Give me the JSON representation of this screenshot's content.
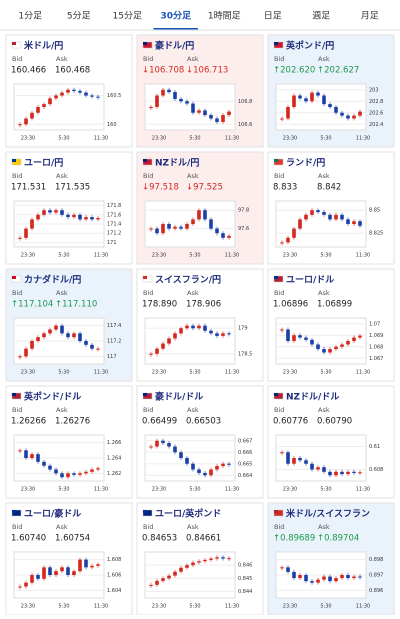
{
  "tabs": [
    "1分足",
    "5分足",
    "15分足",
    "30分足",
    "1時間足",
    "日足",
    "週足",
    "月足"
  ],
  "active_tab": 3,
  "bid_label": "Bid",
  "ask_label": "Ask",
  "cards": [
    {
      "title": "米ドル/円",
      "bid": "160.466",
      "ask": "160.468",
      "state": "none",
      "flag": [
        "#b22234",
        "#ffffff"
      ],
      "chart": {
        "ylim": [
          159.9,
          160.7
        ],
        "yticks": [
          160,
          160.5
        ],
        "xticks": [
          "23:30",
          "5:30",
          "11:30"
        ],
        "values": [
          160.0,
          160.1,
          160.2,
          160.3,
          160.35,
          160.45,
          160.5,
          160.55,
          160.6,
          160.58,
          160.55,
          160.5,
          160.48,
          160.47
        ]
      }
    },
    {
      "title": "豪ドル/円",
      "bid": "↓106.708",
      "ask": "↓106.713",
      "state": "down",
      "flag": [
        "#00247d",
        "#cf142b"
      ],
      "chart": {
        "ylim": [
          106.55,
          106.95
        ],
        "yticks": [
          106.6,
          106.8
        ],
        "xticks": [
          "23:30",
          "5:30",
          "11:30"
        ],
        "values": [
          106.75,
          106.85,
          106.9,
          106.88,
          106.82,
          106.8,
          106.78,
          106.7,
          106.72,
          106.68,
          106.65,
          106.62,
          106.68,
          106.71
        ]
      }
    },
    {
      "title": "英ポンド/円",
      "bid": "↑202.620",
      "ask": "↑202.627",
      "state": "up",
      "flag": [
        "#00247d",
        "#cf142b"
      ],
      "chart": {
        "ylim": [
          202.3,
          203.1
        ],
        "yticks": [
          202.4,
          202.6,
          202.8,
          203
        ],
        "xticks": [
          "23:30",
          "5:30",
          "11:30"
        ],
        "values": [
          202.5,
          202.7,
          202.9,
          202.85,
          202.8,
          202.95,
          202.9,
          202.75,
          202.7,
          202.6,
          202.55,
          202.5,
          202.55,
          202.62
        ]
      }
    },
    {
      "title": "ユーロ/円",
      "bid": "171.531",
      "ask": "171.535",
      "state": "none",
      "flag": [
        "#003399",
        "#ffcc00"
      ],
      "chart": {
        "ylim": [
          170.9,
          171.9
        ],
        "yticks": [
          171,
          171.2,
          171.4,
          171.6,
          171.8
        ],
        "xticks": [
          "23:30",
          "5:30",
          "11:30"
        ],
        "values": [
          171.1,
          171.3,
          171.5,
          171.6,
          171.7,
          171.65,
          171.7,
          171.6,
          171.55,
          171.6,
          171.5,
          171.55,
          171.5,
          171.53
        ]
      }
    },
    {
      "title": "NZドル/円",
      "bid": "↓97.518",
      "ask": "↓97.525",
      "state": "down",
      "flag": [
        "#00247d",
        "#cc142b"
      ],
      "chart": {
        "ylim": [
          97.4,
          97.9
        ],
        "yticks": [
          97.6,
          97.8
        ],
        "xticks": [
          "23:30",
          "5:30",
          "11:30"
        ],
        "values": [
          97.6,
          97.55,
          97.65,
          97.6,
          97.62,
          97.6,
          97.65,
          97.7,
          97.8,
          97.7,
          97.6,
          97.55,
          97.5,
          97.52
        ]
      }
    },
    {
      "title": "ランド/円",
      "bid": "8.833",
      "ask": "8.842",
      "state": "none",
      "flag": [
        "#007a4d",
        "#de3831"
      ],
      "chart": {
        "ylim": [
          8.81,
          8.86
        ],
        "yticks": [
          8.825,
          8.85
        ],
        "xticks": [
          "23:30",
          "5:30",
          "11:30"
        ],
        "values": [
          8.815,
          8.82,
          8.83,
          8.84,
          8.845,
          8.85,
          8.848,
          8.845,
          8.84,
          8.845,
          8.84,
          8.835,
          8.838,
          8.833
        ]
      }
    },
    {
      "title": "カナダドル/円",
      "bid": "↑117.104",
      "ask": "↑117.110",
      "state": "up",
      "flag": [
        "#d80621",
        "#ffffff"
      ],
      "chart": {
        "ylim": [
          116.9,
          117.5
        ],
        "yticks": [
          117,
          117.2,
          117.4
        ],
        "xticks": [
          "23:30",
          "5:30",
          "11:30"
        ],
        "values": [
          117.0,
          117.1,
          117.2,
          117.25,
          117.3,
          117.35,
          117.4,
          117.3,
          117.25,
          117.3,
          117.2,
          117.15,
          117.1,
          117.1
        ]
      }
    },
    {
      "title": "スイスフラン/円",
      "bid": "178.890",
      "ask": "178.906",
      "state": "none",
      "flag": [
        "#d52b1e",
        "#ffffff"
      ],
      "chart": {
        "ylim": [
          178.3,
          179.2
        ],
        "yticks": [
          178.5,
          179
        ],
        "xticks": [
          "23:30",
          "5:30",
          "11:30"
        ],
        "values": [
          178.5,
          178.6,
          178.7,
          178.8,
          178.9,
          179.0,
          179.05,
          179.0,
          179.05,
          178.95,
          178.9,
          178.85,
          178.9,
          178.89
        ]
      }
    },
    {
      "title": "ユーロ/ドル",
      "bid": "1.06896",
      "ask": "1.06899",
      "state": "none",
      "flag": [
        "#003399",
        "#b22234"
      ],
      "chart": {
        "ylim": [
          1.0665,
          1.0705
        ],
        "yticks": [
          1.067,
          1.068,
          1.069,
          1.07
        ],
        "xticks": [
          "23:30",
          "5:30",
          "11:30"
        ],
        "values": [
          1.0695,
          1.0685,
          1.069,
          1.0688,
          1.0686,
          1.0682,
          1.0678,
          1.0675,
          1.0678,
          1.068,
          1.0682,
          1.0685,
          1.0688,
          1.06896
        ]
      }
    },
    {
      "title": "英ポンド/ドル",
      "bid": "1.26266",
      "ask": "1.26276",
      "state": "none",
      "flag": [
        "#00247d",
        "#b22234"
      ],
      "chart": {
        "ylim": [
          1.261,
          1.267
        ],
        "yticks": [
          1.262,
          1.264,
          1.266
        ],
        "xticks": [
          "23:30",
          "5:30",
          "11:30"
        ],
        "values": [
          1.265,
          1.264,
          1.2645,
          1.2635,
          1.263,
          1.2625,
          1.262,
          1.2615,
          1.262,
          1.2618,
          1.262,
          1.2622,
          1.2625,
          1.26266
        ]
      }
    },
    {
      "title": "豪ドル/ドル",
      "bid": "0.66499",
      "ask": "0.66503",
      "state": "none",
      "flag": [
        "#00247d",
        "#b22234"
      ],
      "chart": {
        "ylim": [
          0.6635,
          0.6675
        ],
        "yticks": [
          0.664,
          0.665,
          0.666,
          0.667
        ],
        "xticks": [
          "23:30",
          "5:30",
          "11:30"
        ],
        "values": [
          0.6665,
          0.667,
          0.6668,
          0.6665,
          0.666,
          0.6655,
          0.665,
          0.6645,
          0.6642,
          0.664,
          0.6645,
          0.6648,
          0.665,
          0.66499
        ]
      }
    },
    {
      "title": "NZドル/ドル",
      "bid": "0.60776",
      "ask": "0.60790",
      "state": "none",
      "flag": [
        "#00247d",
        "#b22234"
      ],
      "chart": {
        "ylim": [
          0.607,
          0.611
        ],
        "yticks": [
          0.608,
          0.61
        ],
        "xticks": [
          "23:30",
          "5:30",
          "11:30"
        ],
        "values": [
          0.6095,
          0.6085,
          0.609,
          0.6088,
          0.6085,
          0.608,
          0.6082,
          0.6078,
          0.6075,
          0.6078,
          0.6076,
          0.6078,
          0.6077,
          0.60776
        ]
      }
    },
    {
      "title": "ユーロ/豪ドル",
      "bid": "1.60740",
      "ask": "1.60754",
      "state": "none",
      "flag": [
        "#003399",
        "#00247d"
      ],
      "chart": {
        "ylim": [
          1.603,
          1.609
        ],
        "yticks": [
          1.604,
          1.606,
          1.608
        ],
        "xticks": [
          "23:30",
          "5:30",
          "11:30"
        ],
        "values": [
          1.6045,
          1.605,
          1.606,
          1.6055,
          1.607,
          1.606,
          1.6065,
          1.607,
          1.606,
          1.6065,
          1.608,
          1.607,
          1.6072,
          1.6074
        ]
      }
    },
    {
      "title": "ユーロ/英ポンド",
      "bid": "0.84653",
      "ask": "0.84661",
      "state": "none",
      "flag": [
        "#003399",
        "#00247d"
      ],
      "chart": {
        "ylim": [
          0.8435,
          0.847
        ],
        "yticks": [
          0.844,
          0.845,
          0.846
        ],
        "xticks": [
          "23:30",
          "5:30",
          "11:30"
        ],
        "values": [
          0.8445,
          0.8448,
          0.845,
          0.8452,
          0.8455,
          0.8458,
          0.846,
          0.8462,
          0.8463,
          0.8464,
          0.8465,
          0.8466,
          0.8465,
          0.84653
        ]
      }
    },
    {
      "title": "米ドル/スイスフラン",
      "bid": "↑0.89689",
      "ask": "↑0.89704",
      "state": "up",
      "flag": [
        "#b22234",
        "#d52b1e"
      ],
      "chart": {
        "ylim": [
          0.8955,
          0.8985
        ],
        "yticks": [
          0.896,
          0.897,
          0.898
        ],
        "xticks": [
          "23:30",
          "5:30",
          "11:30"
        ],
        "values": [
          0.8975,
          0.8972,
          0.8968,
          0.897,
          0.8966,
          0.8965,
          0.8967,
          0.8969,
          0.8966,
          0.8968,
          0.897,
          0.8968,
          0.8969,
          0.89689
        ]
      }
    }
  ]
}
